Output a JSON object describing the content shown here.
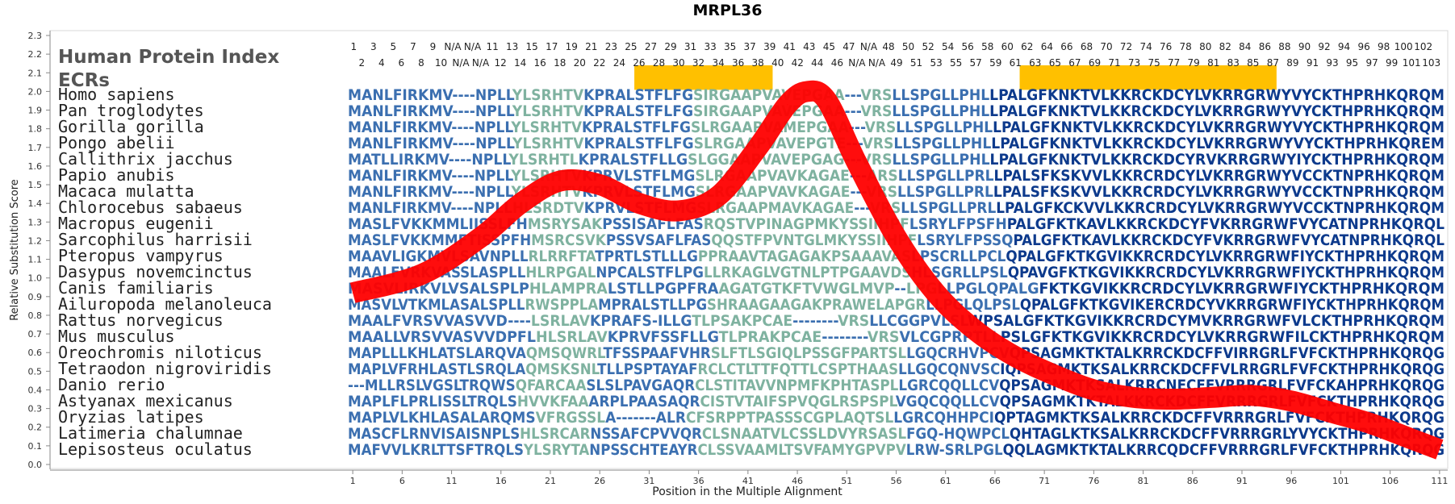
{
  "chart_data": {
    "type": "line",
    "title": "MRPL36",
    "xlabel": "Position in the Multiple Alignment",
    "ylabel": "Relative Substitution Score",
    "xlim": [
      1,
      111
    ],
    "ylim": [
      0.0,
      2.3
    ],
    "y_ticks": [
      "0.0",
      "0.1",
      "0.2",
      "0.3",
      "0.4",
      "0.5",
      "0.6",
      "0.7",
      "0.8",
      "0.9",
      "1.0",
      "1.1",
      "1.2",
      "1.3",
      "1.4",
      "1.5",
      "1.6",
      "1.7",
      "1.8",
      "1.9",
      "2.0",
      "2.1",
      "2.2",
      "2.3"
    ],
    "x_ticks": [
      "1",
      "6",
      "11",
      "16",
      "21",
      "26",
      "31",
      "36",
      "41",
      "46",
      "51",
      "56",
      "61",
      "66",
      "71",
      "76",
      "81",
      "86",
      "91",
      "96",
      "101",
      "106",
      "111"
    ],
    "panel_labels": {
      "protein_index": "Human Protein Index",
      "ecrs": "ECRs"
    },
    "human_index_top": [
      "1",
      "3",
      "5",
      "7",
      "9",
      "N/A",
      "N/A",
      "11",
      "13",
      "15",
      "17",
      "19",
      "21",
      "23",
      "25",
      "27",
      "29",
      "31",
      "33",
      "35",
      "37",
      "39",
      "41",
      "43",
      "45",
      "47",
      "N/A",
      "48",
      "50",
      "52",
      "54",
      "56",
      "58",
      "60",
      "62",
      "64",
      "66",
      "68",
      "70",
      "72",
      "74",
      "76",
      "78",
      "80",
      "82",
      "84",
      "86",
      "88",
      "90",
      "92",
      "94",
      "96",
      "98",
      "100",
      "102"
    ],
    "human_index_bottom": [
      "2",
      "4",
      "6",
      "8",
      "10",
      "N/A",
      "N/A",
      "12",
      "14",
      "16",
      "18",
      "20",
      "22",
      "24",
      "26",
      "28",
      "30",
      "32",
      "34",
      "36",
      "38",
      "40",
      "42",
      "44",
      "46",
      "N/A",
      "N/A",
      "49",
      "51",
      "53",
      "55",
      "57",
      "59",
      "61",
      "63",
      "65",
      "67",
      "69",
      "71",
      "73",
      "75",
      "77",
      "79",
      "81",
      "83",
      "85",
      "87",
      "89",
      "91",
      "93",
      "95",
      "97",
      "99",
      "101",
      "103"
    ],
    "ecr_regions": [
      {
        "start": 30,
        "end": 43
      },
      {
        "start": 69,
        "end": 94
      }
    ],
    "sequences": [
      {
        "species": "Homo sapiens",
        "seq": "MANLFIRKMV----NPLLYLSRHTVKPRALSTFLFGSIRGAAPVAVEPGAA---VRSLLSPGLLPHLLPALGFKNKTVLKKRCKDCYLVKRRGRWYVYCKTHPRHKQRQM"
      },
      {
        "species": "Pan troglodytes",
        "seq": "MANLFIRKMV----NPLLYLSRHTVKPRALSTFLFGSIRGAAPVAVEPGAA---VRSLLSPGLLPHLLPALGFKNKTVLKKRCKDCYLVKRRGRWYVYCKTHPRHKQRQM"
      },
      {
        "species": "Gorilla gorilla",
        "seq": "MANLFIRKMV----NPLLYLSRHTVKPRALSTFLFGSLRGAAPVAMEPGAA---VRSLLSPGLLPHLLPALGFKNKTVLKKRCKDCYLVKRRGRWYVYCKTHPRHKQRQM"
      },
      {
        "species": "Pongo abelii",
        "seq": "MANLFIRKMV----NPLLYLSRHTVKPRALSTFLFGSLRGAAPVAVEPGTE---VRSLLSPGLLPHLLPALGFKNKTVLKKRCKDCYLVKRRGRWYVYCKTHPRHKQREM"
      },
      {
        "species": "Callithrix jacchus",
        "seq": "MATLLIRKMV----NPLLYLSRHTLKPRALSTFLLGSLGGAAPVAVEPGAG---VRSLLSPGLLPHLLPALGFKNKTVLKKRCKDCYRVKRRGRWYIYCKTHPRHKQRQM"
      },
      {
        "species": "Papio anubis",
        "seq": "MANLFIRKMV----NPLLYLSRHTVKPRVLSTFLMGSLRGAAPVAVKAGAE---ARSLLSPGLLPRLLPALSFKSKVVLKKRCRDCYLVKRRGRWYVCCKTNPRHKQRQM"
      },
      {
        "species": "Macaca mulatta",
        "seq": "MANLFIRKMV----NPLLYLSRHTVKPRVLSTFLMGSLRGAAPVAVKAGAE---VRSLLSPGLLPRLLPALSFKSKVVLKKRCRDCYLVKRRGRWYVCCKTNPRHKQRQM"
      },
      {
        "species": "Chlorocebus sabaeus",
        "seq": "MANLFIRKMV----NPLLHLSRDTVKPRVLSTFLMGSLRGAAPMAVKAGAE---VRSLLSPGLLPRLLPALGFKCKVVLKKRCRDCYLVKRRGRWYVCCKTNPRHKQRQM"
      },
      {
        "species": "Macropus eugenii",
        "seq": "MASLFVKKMMLIISSLFHMSRYSAKPSSISAFLFASRQSTVPINAGPMKYSSIIHPFLSRYLFPSFHPALGFKTKAVLKKRCKDCYFVKRRGRWFVYCATNPRHKQRQL"
      },
      {
        "species": "Sarcophilus harrisii",
        "seq": "MASLFVKKMMFTISSPFHMSRCSVKPSSVSAFLFASQQSTFPVNTGLMKYSSIIHPFLSRYLFPSSQPALGFKTKAVLKKRCKDCYFVKRRGRWFVYCATNPRHKQRQL"
      },
      {
        "species": "Pteropus vampyrus",
        "seq": "MAAVLIGKMVLSAVNPLLRLRRFTATPRTLSTLLLGPPRAAVTAGAGAKPSAAAVASLPSCRLLPCLQPALGFKTKGVIKKRCRDCYLVKRRGRWFIYCKTHPRHKQRQM"
      },
      {
        "species": "Dasypus novemcinctus",
        "seq": "MAALFVRKVASSLASPLLHLRPGALNPCALSTFLPGLLRKAGLVGTNLPTPGAAVDSHLSGRLLPSLQPAVGFKTKGVIKKRCRDCYLVKRRGRWFIYCKTHPRHKQRQM"
      },
      {
        "species": "Canis familiaris",
        "seq": "MASVLIRKVLVSALSPLPHLAMPRALSTLLPGPFRAAGATGTKFTVWGLMVP--LPGLLPGLQPALGFKTKGVIKKRCRDCYLVKRRGRWFIYCKTHPRHKQRQM"
      },
      {
        "species": "Ailuropoda melanoleuca",
        "seq": "MASVLVTKMLASALSPLLRWSPPLAMPRALSTLLPGSHRAAGAAGAKPRAWELAPGRLLPGLQLPSLQPALGFKTKGVIKERCRDCYVKRRGRWFIYCKTHPRHKQRQM"
      },
      {
        "species": "Rattus norvegicus",
        "seq": "MAALFVRSVVASVVD----LSRLAVKPRAFS-ILLGTLPSAKPCAE--------VRSLLCGGPVLSLWPSALGFKTKGVIKKRCRDCYMVKRRGRWFVLCKTHPRHKQRQM"
      },
      {
        "species": "Mus musculus",
        "seq": "MAALLVRSVVASVVDPFLHLSRLAVKPRVFSSFLLGTLPRAKPCAE--------VRSVLCGPRPTLLPSLGFKTKGVIKKRCRDCYLVKRRGRWFILCKTHPRHKQRQM"
      },
      {
        "species": "Oreochromis niloticus",
        "seq": "MAPLLLKHLATSLARQVAQMSQWRLTFSSPAAFVHRSLFTLSGIQLPSSGFPARTSLLGQCRHVPCVQPSAGMKTKTALKRRCKDCFFVIRRGRLFVFCKTHPRHKQRQG"
      },
      {
        "species": "Tetraodon nigroviridis",
        "seq": "MAPLVFRHLASTLSRQLAQMSKSNLTLLPSPTAYAFRCLCTLTTFQTTLCSPTHAASLLGQCQNVSCIQPSAGMKTKSALKRRCKDCFFVLRRGRLFVFCKTHPRHKQRQG"
      },
      {
        "species": "Danio rerio",
        "seq": "---MLLRSLVGSLTRQWSQFARCAASLSLPAVGAQRCLSTITAVVNPMFKPHTASPLLGRCQQLLCVQPSAGMKTKSALKRRCNECFFVRRRGRLFVFCKAHPRHKQRQG"
      },
      {
        "species": "Astyanax mexicanus",
        "seq": "MAPLFLPRLISSLTRQLSHVVKFAAARPLPAASAQRCISTVTAIFSPVQGLRSPSPLVGQCQQLLCVQPSAGMKTKTALKKRCKDCFFVRRRGRLFVFCKTHPRHKQRQG"
      },
      {
        "species": "Oryzias latipes",
        "seq": "MAPLVLKHLASALARQMSVFRGSSLA-------ALRCFSRPPTPASSSCGPLAQTSLLGRCQHHPCIQPTAGMKTKSALKRRCKDCFFVRRRGRLFVFCKTHPRHKQRQG"
      },
      {
        "species": "Latimeria chalumnae",
        "seq": "MASCFLRNVISAISNPLSHLSRCARNSSAFCPVVQRCLSNAATVLCSSLDVYRSASLFGQ-HQWPCLQHTAGLKTKSALKRRCKDCFFVRRRGRLYVYCKTHPRHKQRQG"
      },
      {
        "species": "Lepisosteus oculatus",
        "seq": "MAFVVLKRLTTSFTRQLSYLSRYTANPSSCHTEAYRCLSSVAAMLTSVFAMYGPVPVLRW-SRLPGLQQLAGMKTKTALKRRCQDCFFVRRRGRLFVFCKTHPRHKQRQG"
      }
    ],
    "series": [
      {
        "name": "Relative Substitution Score",
        "color": "#ff0000",
        "x": [
          1,
          8,
          14,
          18,
          22,
          26,
          30,
          34,
          38,
          42,
          45,
          47,
          49,
          52,
          56,
          60,
          64,
          68,
          72,
          76,
          80,
          84,
          88,
          92,
          96,
          100,
          104,
          108,
          111
        ],
        "y": [
          0.92,
          1.02,
          1.22,
          1.4,
          1.52,
          1.5,
          1.4,
          1.36,
          1.44,
          1.7,
          1.93,
          2.0,
          1.95,
          1.62,
          1.22,
          0.92,
          0.72,
          0.58,
          0.48,
          0.4,
          0.36,
          0.35,
          0.36,
          0.37,
          0.34,
          0.28,
          0.22,
          0.14,
          0.08
        ]
      }
    ],
    "grid": false,
    "legend": "none"
  },
  "colors": {
    "curve": "#ff0000",
    "ecr_bar": "#ffc000",
    "seq_dark": "#0d3a8c",
    "seq_mid": "#3b6fb0",
    "seq_light": "#7fb2a0",
    "axis": "#888888",
    "species_text": "#222222",
    "title": "#000000"
  }
}
